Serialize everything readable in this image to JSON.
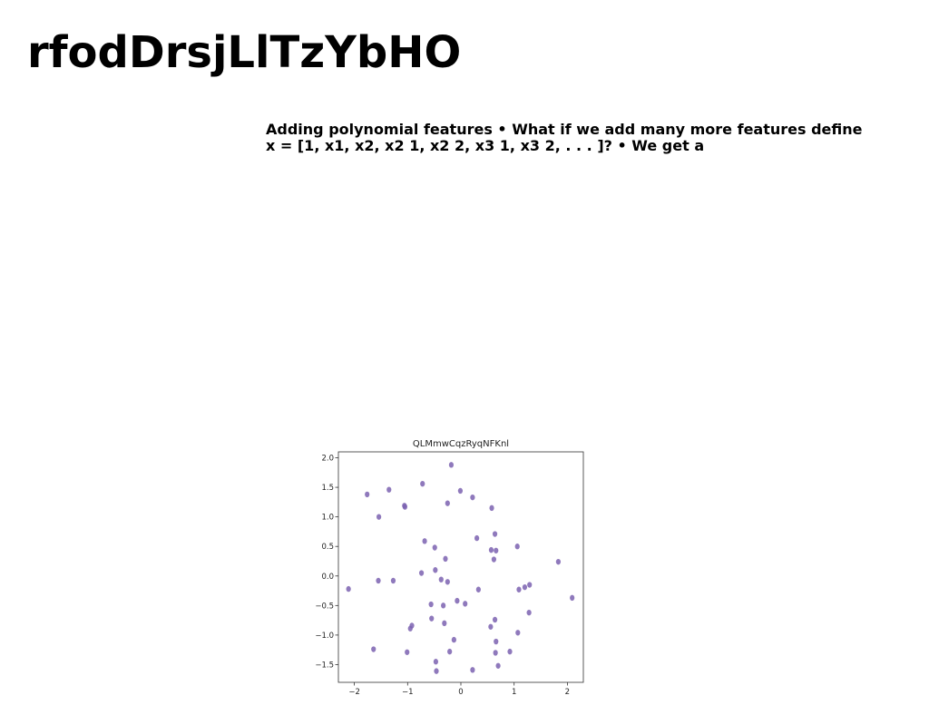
{
  "slide": {
    "title": "rfodDrsjLlTzYbHO",
    "body": "Adding polynomial features • What if we add many more features define x = [1, x1, x2, x2 1, x2 2, x3 1, x3 2, . . . ]? • We get a"
  },
  "chart_data": {
    "type": "scatter",
    "title": "QLMmwCqzRyqNFKnl",
    "xlabel": "",
    "ylabel": "",
    "xlim": [
      -2.3,
      2.3
    ],
    "ylim": [
      -1.8,
      2.1
    ],
    "xticks": [
      -2,
      -1,
      0,
      1,
      2
    ],
    "xtick_labels": [
      "−2",
      "−1",
      "0",
      "1",
      "2"
    ],
    "yticks": [
      -1.5,
      -1.0,
      -0.5,
      0.0,
      0.5,
      1.0,
      1.5,
      2.0
    ],
    "ytick_labels": [
      "−1.5",
      "−1.0",
      "−0.5",
      "0.0",
      "0.5",
      "1.0",
      "1.5",
      "2.0"
    ],
    "grid": false,
    "marker_color": "#7b61b0",
    "points": [
      {
        "x": -0.18,
        "y": 1.88
      },
      {
        "x": -0.72,
        "y": 1.56
      },
      {
        "x": -1.35,
        "y": 1.46
      },
      {
        "x": -0.01,
        "y": 1.44
      },
      {
        "x": -1.76,
        "y": 1.38
      },
      {
        "x": 0.22,
        "y": 1.33
      },
      {
        "x": -0.25,
        "y": 1.23
      },
      {
        "x": -1.06,
        "y": 1.19
      },
      {
        "x": -1.05,
        "y": 1.17
      },
      {
        "x": 0.58,
        "y": 1.15
      },
      {
        "x": -1.54,
        "y": 1.0
      },
      {
        "x": 0.64,
        "y": 0.71
      },
      {
        "x": 0.3,
        "y": 0.64
      },
      {
        "x": -0.68,
        "y": 0.59
      },
      {
        "x": 1.06,
        "y": 0.5
      },
      {
        "x": -0.49,
        "y": 0.48
      },
      {
        "x": 0.57,
        "y": 0.44
      },
      {
        "x": 0.66,
        "y": 0.43
      },
      {
        "x": -0.29,
        "y": 0.29
      },
      {
        "x": 0.62,
        "y": 0.28
      },
      {
        "x": 1.83,
        "y": 0.24
      },
      {
        "x": -0.48,
        "y": 0.1
      },
      {
        "x": -0.74,
        "y": 0.05
      },
      {
        "x": -0.37,
        "y": -0.06
      },
      {
        "x": -1.55,
        "y": -0.08
      },
      {
        "x": -1.27,
        "y": -0.08
      },
      {
        "x": -0.25,
        "y": -0.1
      },
      {
        "x": 1.29,
        "y": -0.15
      },
      {
        "x": 1.2,
        "y": -0.19
      },
      {
        "x": -2.11,
        "y": -0.22
      },
      {
        "x": 0.33,
        "y": -0.23
      },
      {
        "x": 1.09,
        "y": -0.23
      },
      {
        "x": 2.09,
        "y": -0.37
      },
      {
        "x": -0.07,
        "y": -0.42
      },
      {
        "x": -0.56,
        "y": -0.48
      },
      {
        "x": 0.08,
        "y": -0.47
      },
      {
        "x": -0.33,
        "y": -0.5
      },
      {
        "x": 1.28,
        "y": -0.62
      },
      {
        "x": -0.55,
        "y": -0.72
      },
      {
        "x": 0.64,
        "y": -0.74
      },
      {
        "x": -0.31,
        "y": -0.8
      },
      {
        "x": -0.92,
        "y": -0.84
      },
      {
        "x": 0.56,
        "y": -0.86
      },
      {
        "x": -0.95,
        "y": -0.89
      },
      {
        "x": 1.07,
        "y": -0.96
      },
      {
        "x": -0.13,
        "y": -1.08
      },
      {
        "x": 0.66,
        "y": -1.11
      },
      {
        "x": -1.64,
        "y": -1.24
      },
      {
        "x": -0.21,
        "y": -1.28
      },
      {
        "x": 0.92,
        "y": -1.28
      },
      {
        "x": -1.01,
        "y": -1.29
      },
      {
        "x": 0.65,
        "y": -1.3
      },
      {
        "x": -0.47,
        "y": -1.45
      },
      {
        "x": 0.7,
        "y": -1.52
      },
      {
        "x": 0.22,
        "y": -1.59
      },
      {
        "x": -0.46,
        "y": -1.61
      }
    ]
  }
}
